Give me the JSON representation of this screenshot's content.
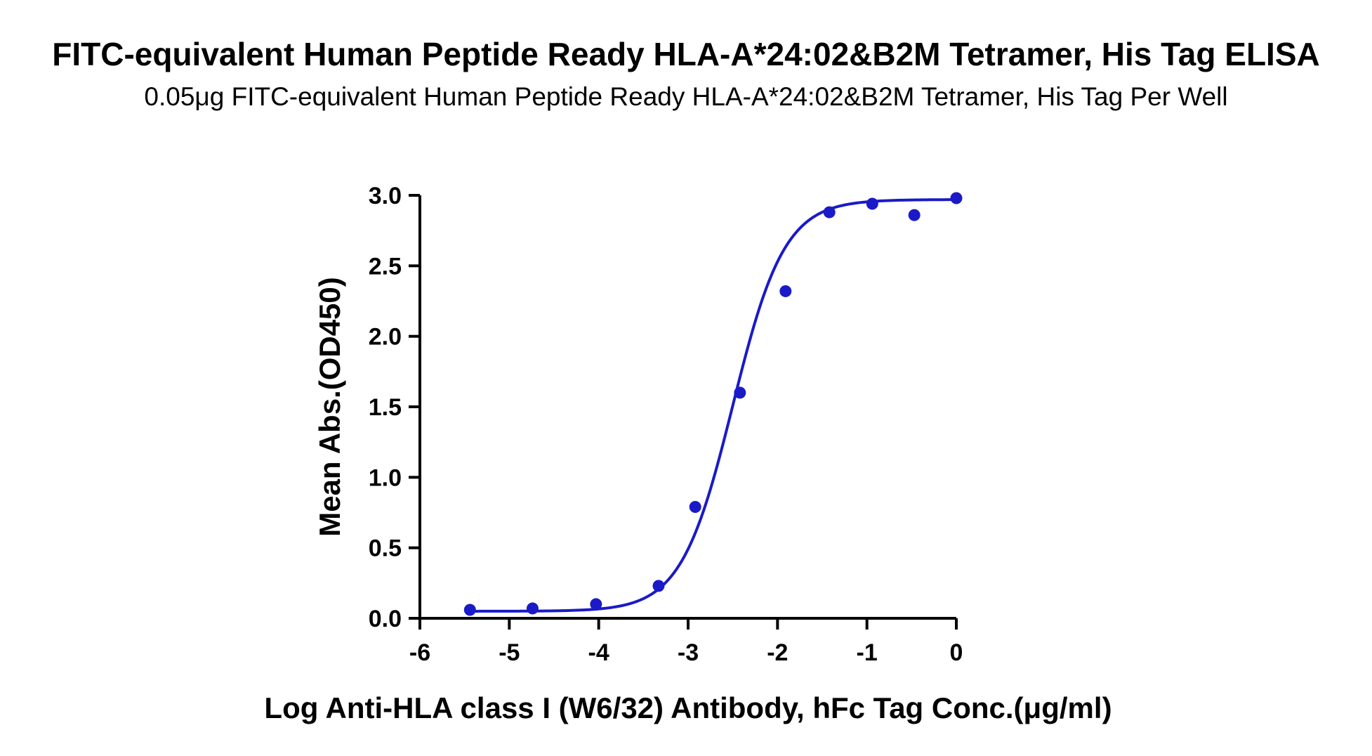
{
  "chart_data": {
    "type": "scatter",
    "title": "FITC-equivalent Human Peptide Ready HLA-A*24:02&B2M Tetramer, His Tag ELISA",
    "subtitle": "0.05μg FITC-equivalent Human Peptide Ready HLA-A*24:02&B2M Tetramer, His Tag Per Well",
    "xlabel": "Log Anti-HLA class I (W6/32) Antibody, hFc Tag Conc.(μg/ml)",
    "ylabel": "Mean Abs.(OD450)",
    "xlim": [
      -6,
      0
    ],
    "ylim": [
      0,
      3.0
    ],
    "x_ticks": [
      "-6",
      "-5",
      "-4",
      "-3",
      "-2",
      "-1",
      "0"
    ],
    "y_ticks": [
      "0.0",
      "0.5",
      "1.0",
      "1.5",
      "2.0",
      "2.5",
      "3.0"
    ],
    "grid": false,
    "series": [
      {
        "points": [
          {
            "x": -5.44,
            "y": 0.06
          },
          {
            "x": -4.74,
            "y": 0.07
          },
          {
            "x": -4.03,
            "y": 0.1
          },
          {
            "x": -3.33,
            "y": 0.23
          },
          {
            "x": -2.92,
            "y": 0.79
          },
          {
            "x": -2.42,
            "y": 1.6
          },
          {
            "x": -1.91,
            "y": 2.32
          },
          {
            "x": -1.42,
            "y": 2.88
          },
          {
            "x": -0.94,
            "y": 2.94
          },
          {
            "x": -0.47,
            "y": 2.86
          },
          {
            "x": 0.0,
            "y": 2.98
          }
        ],
        "fit": {
          "model": "4PL",
          "bottom": 0.05,
          "top": 2.97,
          "log_ec50": -2.5,
          "hill_slope": 1.5
        },
        "color": "#1a1ac8"
      }
    ]
  }
}
